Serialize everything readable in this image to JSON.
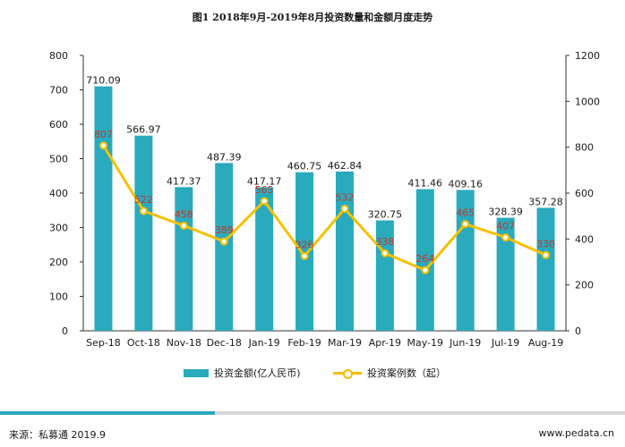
{
  "title": "图1  2018年9月-2019年8月投资数量和金额月度走势",
  "footer": {
    "source": "来源：私募通 2019.9",
    "site": "www.pedata.cn"
  },
  "colors": {
    "bar": "#2aaabd",
    "line": "#f6c000",
    "count_label": "#c0392b",
    "accent_rule": "#2aaabd"
  },
  "chart_data": {
    "type": "bar",
    "title": "图1  2018年9月-2019年8月投资数量和金额月度走势",
    "categories": [
      "Sep-18",
      "Oct-18",
      "Nov-18",
      "Dec-18",
      "Jan-19",
      "Feb-19",
      "Mar-19",
      "Apr-19",
      "May-19",
      "Jun-19",
      "Jul-19",
      "Aug-19"
    ],
    "series": [
      {
        "name": "投资金额(亿人民币)",
        "type": "bar",
        "axis": "left",
        "values": [
          710.09,
          566.97,
          417.37,
          487.39,
          417.17,
          460.75,
          462.84,
          320.75,
          411.46,
          409.16,
          328.39,
          357.28
        ],
        "labels": [
          "710.09",
          "566.97",
          "417.37",
          "487.39",
          "417.17",
          "460.75",
          "462.84",
          "320.75",
          "411.46",
          "409.16",
          "328.39",
          "357.28"
        ]
      },
      {
        "name": "投资案例数（起）",
        "type": "line",
        "axis": "right",
        "values": [
          807,
          522,
          458,
          389,
          565,
          326,
          532,
          338,
          264,
          465,
          407,
          330
        ],
        "labels": [
          "807",
          "522",
          "458",
          "389",
          "565",
          "326",
          "532",
          "338",
          "264",
          "465",
          "407",
          "330"
        ]
      }
    ],
    "ylim_left": [
      0,
      800
    ],
    "yticks_left": [
      "0",
      "100",
      "200",
      "300",
      "400",
      "500",
      "600",
      "700",
      "800"
    ],
    "ylim_right": [
      0,
      1200
    ],
    "yticks_right": [
      "0",
      "200",
      "400",
      "600",
      "800",
      "1000",
      "1200"
    ],
    "grid": false,
    "legend_position": "bottom"
  }
}
